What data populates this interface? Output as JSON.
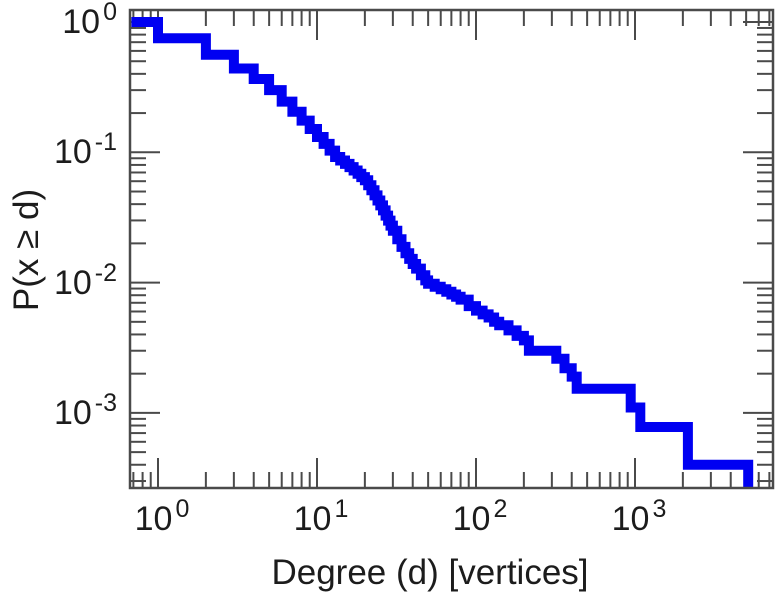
{
  "figure": {
    "background": "#ffffff",
    "plot_border_color": "#4a4a4a",
    "tick_color": "#4a4a4a",
    "text_color": "#1c1c1c"
  },
  "chart_data": {
    "type": "line",
    "subtype": "step-ccdf-loglog",
    "title": "",
    "xlabel": "Degree (d) [vertices]",
    "ylabel": "P(x ≥ d)",
    "x_scale": "log",
    "y_scale": "log",
    "xlim": [
      0.68,
      7400
    ],
    "ylim": [
      0.00026,
      1.23
    ],
    "grid": false,
    "legend": "none",
    "line_color": "#0000f2",
    "line_width": 10,
    "x_ticks": [
      {
        "value": 1,
        "base": "10",
        "exp": "0"
      },
      {
        "value": 10,
        "base": "10",
        "exp": "1"
      },
      {
        "value": 100,
        "base": "10",
        "exp": "2"
      },
      {
        "value": 1000,
        "base": "10",
        "exp": "3"
      }
    ],
    "y_ticks": [
      {
        "value": 1,
        "base": "10",
        "exp": "0"
      },
      {
        "value": 0.1,
        "base": "10",
        "exp": "-1"
      },
      {
        "value": 0.01,
        "base": "10",
        "exp": "-2"
      },
      {
        "value": 0.001,
        "base": "10",
        "exp": "-3"
      }
    ],
    "log_minor_ticks": true,
    "steps_note": "CCDF step points [degree d, P(x >= d)] read from the plot",
    "steps": [
      [
        0.68,
        1.0
      ],
      [
        1,
        0.75
      ],
      [
        2,
        0.56
      ],
      [
        3,
        0.44
      ],
      [
        4,
        0.365
      ],
      [
        5,
        0.3
      ],
      [
        6,
        0.245
      ],
      [
        7,
        0.205
      ],
      [
        8,
        0.175
      ],
      [
        9,
        0.151
      ],
      [
        10,
        0.131
      ],
      [
        11,
        0.116
      ],
      [
        12,
        0.103
      ],
      [
        13,
        0.092
      ],
      [
        14,
        0.0865
      ],
      [
        15,
        0.0815
      ],
      [
        16,
        0.077
      ],
      [
        17,
        0.0725
      ],
      [
        18,
        0.0685
      ],
      [
        19,
        0.0645
      ],
      [
        20,
        0.061
      ],
      [
        21,
        0.0558
      ],
      [
        22,
        0.0511
      ],
      [
        23,
        0.0467
      ],
      [
        24,
        0.0427
      ],
      [
        25,
        0.0391
      ],
      [
        26,
        0.0358
      ],
      [
        27,
        0.0327
      ],
      [
        28,
        0.0299
      ],
      [
        29,
        0.0274
      ],
      [
        30,
        0.025
      ],
      [
        32,
        0.0215
      ],
      [
        34,
        0.0188
      ],
      [
        36,
        0.0168
      ],
      [
        38,
        0.0152
      ],
      [
        40,
        0.0139
      ],
      [
        42,
        0.0128
      ],
      [
        45,
        0.0114
      ],
      [
        48,
        0.0104
      ],
      [
        50,
        0.0098
      ],
      [
        55,
        0.0093
      ],
      [
        60,
        0.0089
      ],
      [
        65,
        0.0085
      ],
      [
        70,
        0.0081
      ],
      [
        75,
        0.0078
      ],
      [
        80,
        0.0074
      ],
      [
        90,
        0.0066
      ],
      [
        100,
        0.0061
      ],
      [
        110,
        0.0057
      ],
      [
        120,
        0.0054
      ],
      [
        130,
        0.005
      ],
      [
        140,
        0.0047
      ],
      [
        160,
        0.0043
      ],
      [
        180,
        0.0039
      ],
      [
        200,
        0.0036
      ],
      [
        215,
        0.003
      ],
      [
        320,
        0.0026
      ],
      [
        360,
        0.0022
      ],
      [
        400,
        0.0019
      ],
      [
        430,
        0.00153
      ],
      [
        940,
        0.0011
      ],
      [
        1080,
        0.00078
      ],
      [
        2150,
        0.0004
      ],
      [
        5150,
        0.00017
      ]
    ]
  }
}
